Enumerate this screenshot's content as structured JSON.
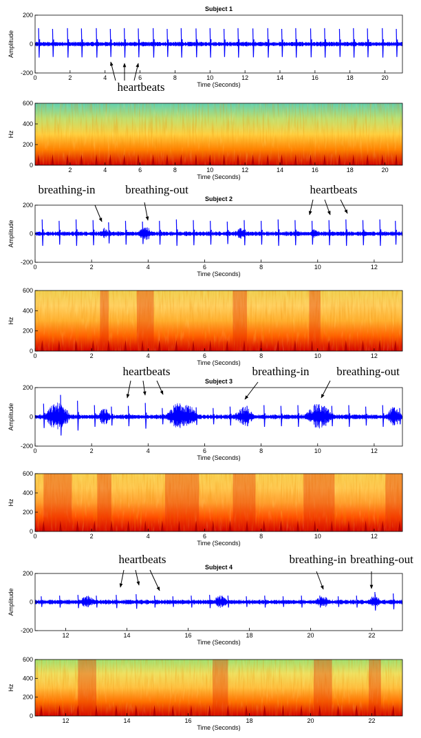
{
  "chart_data": [
    {
      "type": "line",
      "title": "Subject 1",
      "xlabel": "Time (Seconds)",
      "ylabel": "Amplitude",
      "xlim": [
        0,
        21
      ],
      "ylim": [
        -200,
        200
      ],
      "xticks": [
        0,
        2,
        4,
        6,
        8,
        10,
        12,
        14,
        16,
        18,
        20
      ],
      "yticks": [
        -200,
        0,
        200
      ],
      "color": "#0000ff",
      "beats": {
        "x": [
          0.2,
          1.0,
          1.85,
          2.65,
          3.5,
          4.3,
          5.1,
          5.9,
          6.75,
          7.55,
          8.35,
          9.2,
          10.0,
          10.8,
          11.6,
          12.45,
          13.3,
          14.1,
          14.9,
          15.75,
          16.55,
          17.4,
          18.2,
          19.0,
          19.85,
          20.65
        ],
        "values": [
          110,
          105,
          110,
          108,
          110,
          105,
          110,
          108,
          110,
          105,
          110,
          108,
          110,
          105,
          110,
          108,
          110,
          105,
          110,
          108,
          110,
          105,
          110,
          108,
          110,
          105
        ]
      },
      "bursts": [],
      "annotations": [
        "heartbeats"
      ]
    },
    {
      "type": "heatmap",
      "xlabel": "Time (Seconds)",
      "ylabel": "Hz",
      "xlim": [
        0,
        21
      ],
      "ylim": [
        0,
        600
      ],
      "xticks": [
        2,
        4,
        6,
        8,
        10,
        12,
        14,
        16,
        18,
        20
      ],
      "yticks": [
        0,
        200,
        400,
        600
      ],
      "colormap": [
        "#d00000",
        "#ff8000",
        "#ffd040",
        "#c0e070",
        "#60d0b0"
      ]
    },
    {
      "type": "line",
      "title": "Subject 2",
      "xlabel": "Time (Seconds)",
      "ylabel": "Amplitude",
      "xlim": [
        0,
        13
      ],
      "ylim": [
        -200,
        200
      ],
      "xticks": [
        0,
        2,
        4,
        6,
        8,
        10,
        12
      ],
      "yticks": [
        -200,
        0,
        200
      ],
      "color": "#0000ff",
      "beats": {
        "x": [
          0.25,
          0.85,
          1.45,
          2.05,
          2.6,
          3.2,
          3.8,
          4.4,
          5.0,
          5.6,
          6.2,
          6.8,
          7.4,
          8.0,
          8.6,
          9.2,
          9.8,
          10.4,
          11.0,
          11.6,
          12.2,
          12.75
        ],
        "values": [
          100,
          90,
          100,
          95,
          80,
          90,
          85,
          90,
          100,
          95,
          90,
          85,
          95,
          90,
          100,
          95,
          90,
          95,
          100,
          95,
          100,
          90
        ]
      },
      "bursts": [
        {
          "start": 2.3,
          "end": 2.6,
          "amplitude": 45
        },
        {
          "start": 3.6,
          "end": 4.2,
          "amplitude": 50
        },
        {
          "start": 7.0,
          "end": 7.5,
          "amplitude": 40
        },
        {
          "start": 9.7,
          "end": 10.1,
          "amplitude": 35
        }
      ],
      "annotations": [
        "breathing-in",
        "breathing-out",
        "heartbeats"
      ]
    },
    {
      "type": "heatmap",
      "xlabel": "Time (Seconds)",
      "ylabel": "Hz",
      "xlim": [
        0,
        13
      ],
      "ylim": [
        0,
        600
      ],
      "xticks": [
        0,
        2,
        4,
        6,
        8,
        10,
        12
      ],
      "yticks": [
        0,
        200,
        400,
        600
      ],
      "colormap": [
        "#d00000",
        "#ff6000",
        "#ffb030",
        "#ffd060",
        "#f0d050"
      ]
    },
    {
      "type": "line",
      "title": "Subject 3",
      "xlabel": "Time (Seconds)",
      "ylabel": "Amplitude",
      "xlim": [
        0,
        13
      ],
      "ylim": [
        -200,
        200
      ],
      "xticks": [
        0,
        2,
        4,
        6,
        8,
        10,
        12
      ],
      "yticks": [
        -200,
        0,
        200
      ],
      "color": "#0000ff",
      "beats": {
        "x": [
          0.3,
          0.9,
          1.5,
          2.1,
          2.7,
          3.3,
          3.9,
          4.5,
          5.1,
          5.7,
          6.3,
          6.9,
          7.5,
          8.1,
          8.7,
          9.3,
          9.9,
          10.5,
          11.1,
          11.7,
          12.3,
          12.9
        ],
        "values": [
          90,
          150,
          110,
          80,
          70,
          75,
          95,
          60,
          70,
          65,
          60,
          70,
          75,
          80,
          75,
          80,
          85,
          75,
          80,
          70,
          80,
          60
        ]
      },
      "bursts": [
        {
          "start": 0.3,
          "end": 1.3,
          "amplitude": 100
        },
        {
          "start": 2.2,
          "end": 2.7,
          "amplitude": 60
        },
        {
          "start": 4.6,
          "end": 5.8,
          "amplitude": 110
        },
        {
          "start": 7.0,
          "end": 7.8,
          "amplitude": 70
        },
        {
          "start": 9.5,
          "end": 10.6,
          "amplitude": 90
        },
        {
          "start": 12.4,
          "end": 13.0,
          "amplitude": 70
        }
      ],
      "annotations": [
        "heartbeats",
        "breathing-in",
        "breathing-out"
      ]
    },
    {
      "type": "heatmap",
      "xlabel": "Time (Seconds)",
      "ylabel": "Hz",
      "xlim": [
        0,
        13
      ],
      "ylim": [
        0,
        600
      ],
      "xticks": [
        0,
        2,
        4,
        6,
        8,
        10,
        12
      ],
      "yticks": [
        0,
        200,
        400,
        600
      ],
      "colormap": [
        "#d00000",
        "#ff5000",
        "#ffa030",
        "#ffc850",
        "#f8d050"
      ]
    },
    {
      "type": "line",
      "title": "Subject 4",
      "xlabel": "Time (Seconds)",
      "ylabel": "Amplitude",
      "xlim": [
        11,
        23
      ],
      "ylim": [
        -200,
        200
      ],
      "xticks": [
        12,
        14,
        16,
        18,
        20,
        22
      ],
      "yticks": [
        -200,
        0,
        200
      ],
      "color": "#0000ff",
      "beats": {
        "x": [
          11.2,
          11.8,
          12.4,
          13.0,
          13.65,
          14.3,
          14.9,
          15.5,
          16.1,
          16.7,
          17.3,
          17.9,
          18.5,
          19.1,
          19.7,
          20.3,
          20.9,
          21.5,
          22.1,
          22.7
        ],
        "values": [
          40,
          45,
          50,
          45,
          50,
          55,
          45,
          40,
          45,
          50,
          45,
          40,
          45,
          40,
          45,
          45,
          40,
          45,
          70,
          60
        ]
      },
      "bursts": [
        {
          "start": 12.4,
          "end": 13.0,
          "amplitude": 45
        },
        {
          "start": 16.8,
          "end": 17.3,
          "amplitude": 50
        },
        {
          "start": 20.1,
          "end": 20.7,
          "amplitude": 40
        },
        {
          "start": 21.9,
          "end": 22.3,
          "amplitude": 60
        }
      ],
      "annotations": [
        "heartbeats",
        "breathing-in",
        "breathing-out"
      ]
    },
    {
      "type": "heatmap",
      "xlabel": "Time (Seconds)",
      "ylabel": "Hz",
      "xlim": [
        11,
        23
      ],
      "ylim": [
        0,
        600
      ],
      "xticks": [
        12,
        14,
        16,
        18,
        20,
        22
      ],
      "yticks": [
        0,
        200,
        400,
        600
      ],
      "colormap": [
        "#d00000",
        "#ff7000",
        "#ffc040",
        "#f0e060",
        "#a0e070"
      ]
    }
  ]
}
